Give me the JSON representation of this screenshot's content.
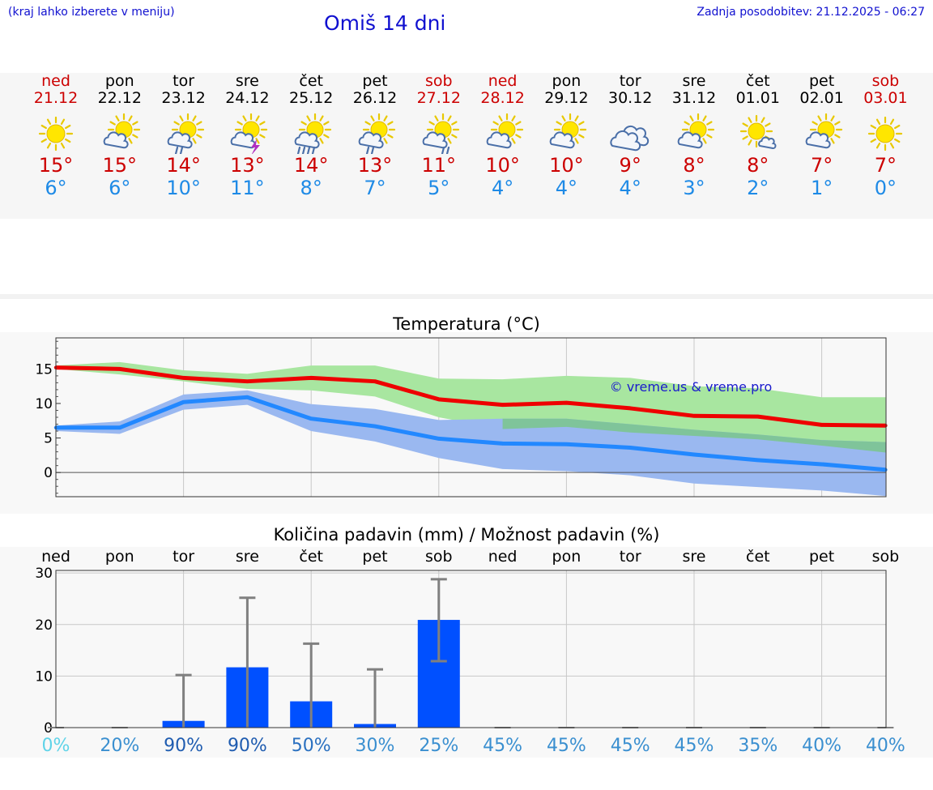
{
  "header": {
    "menu_hint": "(kraj lahko izberete v meniju)",
    "title": "Omiš 14 dni",
    "update_info": "Zadnja posodobitev: 21.12.2025 - 06:27"
  },
  "colors": {
    "weekend": "#cc0000",
    "weekday": "#000000",
    "max_line": "#ee0000",
    "min_line": "#2288ff",
    "max_band": "#a8e6a0",
    "min_band": "#9ab8f0",
    "overlap_band": "#7fc49a",
    "bar": "#0050ff",
    "error_bar": "#808080"
  },
  "forecast": [
    {
      "day": "ned",
      "date": "21.12",
      "icon": "sun-icon",
      "max": "15°",
      "min": "6°",
      "weekend": true
    },
    {
      "day": "pon",
      "date": "22.12",
      "icon": "sun-cloud-icon",
      "max": "15°",
      "min": "6°",
      "weekend": false
    },
    {
      "day": "tor",
      "date": "23.12",
      "icon": "sun-cloud-rain-icon",
      "max": "14°",
      "min": "10°",
      "weekend": false
    },
    {
      "day": "sre",
      "date": "24.12",
      "icon": "sun-cloud-storm-icon",
      "max": "13°",
      "min": "11°",
      "weekend": false
    },
    {
      "day": "čet",
      "date": "25.12",
      "icon": "sun-cloud-heavy-rain-icon",
      "max": "14°",
      "min": "8°",
      "weekend": false
    },
    {
      "day": "pet",
      "date": "26.12",
      "icon": "sun-cloud-rain-icon",
      "max": "13°",
      "min": "7°",
      "weekend": false
    },
    {
      "day": "sob",
      "date": "27.12",
      "icon": "sun-cloud-light-rain-icon",
      "max": "11°",
      "min": "5°",
      "weekend": true
    },
    {
      "day": "ned",
      "date": "28.12",
      "icon": "sun-cloud-icon",
      "max": "10°",
      "min": "4°",
      "weekend": true
    },
    {
      "day": "pon",
      "date": "29.12",
      "icon": "sun-cloud-icon",
      "max": "10°",
      "min": "4°",
      "weekend": false
    },
    {
      "day": "tor",
      "date": "30.12",
      "icon": "cloud-icon",
      "max": "9°",
      "min": "4°",
      "weekend": false
    },
    {
      "day": "sre",
      "date": "31.12",
      "icon": "sun-cloud-icon",
      "max": "8°",
      "min": "3°",
      "weekend": false
    },
    {
      "day": "čet",
      "date": "01.01",
      "icon": "sun-small-cloud-icon",
      "max": "8°",
      "min": "2°",
      "weekend": false
    },
    {
      "day": "pet",
      "date": "02.01",
      "icon": "sun-cloud-icon",
      "max": "7°",
      "min": "1°",
      "weekend": false
    },
    {
      "day": "sob",
      "date": "03.01",
      "icon": "sun-icon",
      "max": "7°",
      "min": "0°",
      "weekend": true
    }
  ],
  "chart_data": [
    {
      "type": "line",
      "title": "Temperatura (°C)",
      "x": [
        0,
        1,
        2,
        3,
        4,
        5,
        6,
        7,
        8,
        9,
        10,
        11,
        12,
        13
      ],
      "ylim": [
        -3.5,
        19.5
      ],
      "yticks": [
        "15",
        "10",
        "5",
        "0"
      ],
      "ytick_values": [
        15,
        10,
        5,
        0
      ],
      "watermark": "© vreme.us & vreme.pro",
      "series": [
        {
          "name": "max",
          "values": [
            15.2,
            15.0,
            13.7,
            13.2,
            13.7,
            13.2,
            10.6,
            9.8,
            10.1,
            9.3,
            8.2,
            8.1,
            6.9,
            6.8
          ]
        },
        {
          "name": "min",
          "values": [
            6.5,
            6.5,
            10.2,
            10.9,
            7.8,
            6.7,
            4.9,
            4.2,
            4.1,
            3.6,
            2.6,
            1.8,
            1.2,
            0.4
          ]
        }
      ],
      "bands": [
        {
          "name": "max_range",
          "upper": [
            15.5,
            16.0,
            14.8,
            14.3,
            15.5,
            15.5,
            13.6,
            13.5,
            14.0,
            13.7,
            12.5,
            12.2,
            10.9,
            10.9
          ],
          "lower": [
            15.0,
            14.2,
            13.2,
            12.1,
            11.9,
            11.0,
            8.0,
            6.3,
            6.6,
            5.8,
            5.3,
            4.8,
            3.9,
            2.9
          ]
        },
        {
          "name": "min_range",
          "upper": [
            6.8,
            7.4,
            11.3,
            11.9,
            9.9,
            9.2,
            7.6,
            7.8,
            7.8,
            7.0,
            6.2,
            5.5,
            4.7,
            4.4
          ],
          "lower": [
            6.0,
            5.6,
            9.1,
            9.8,
            6.0,
            4.5,
            2.1,
            0.5,
            0.2,
            -0.4,
            -1.6,
            -2.1,
            -2.6,
            -3.4
          ]
        }
      ]
    },
    {
      "type": "bar",
      "title": "Količina padavin (mm) / Možnost padavin (%)",
      "categories": [
        "ned",
        "pon",
        "tor",
        "sre",
        "čet",
        "pet",
        "sob",
        "ned",
        "pon",
        "tor",
        "sre",
        "čet",
        "pet",
        "sob"
      ],
      "values": [
        0,
        0,
        1.3,
        11.7,
        5.1,
        0.7,
        20.9,
        0,
        0,
        0,
        0,
        0,
        0,
        0
      ],
      "error_high": [
        0,
        0,
        10.2,
        25.2,
        16.3,
        11.3,
        28.8,
        0,
        0,
        0,
        0,
        0,
        0,
        0
      ],
      "error_low": [
        0,
        0,
        0,
        0,
        0,
        0,
        12.9,
        0,
        0,
        0,
        0,
        0,
        0,
        0
      ],
      "ylim": [
        0,
        30.5
      ],
      "yticks": [
        "30",
        "20",
        "10",
        "0"
      ],
      "ytick_values": [
        30,
        20,
        10,
        0
      ],
      "probabilities": [
        "0%",
        "20%",
        "90%",
        "90%",
        "50%",
        "30%",
        "25%",
        "45%",
        "45%",
        "45%",
        "45%",
        "35%",
        "40%",
        "40%"
      ],
      "probability_colors": [
        "#5fd3e8",
        "#3a8fd0",
        "#1f5cb0",
        "#1f5cb0",
        "#2a70c0",
        "#3a8fd0",
        "#3a8fd0",
        "#3a8fd0",
        "#3a8fd0",
        "#3a8fd0",
        "#3a8fd0",
        "#3a8fd0",
        "#3a8fd0",
        "#3a8fd0"
      ]
    }
  ]
}
